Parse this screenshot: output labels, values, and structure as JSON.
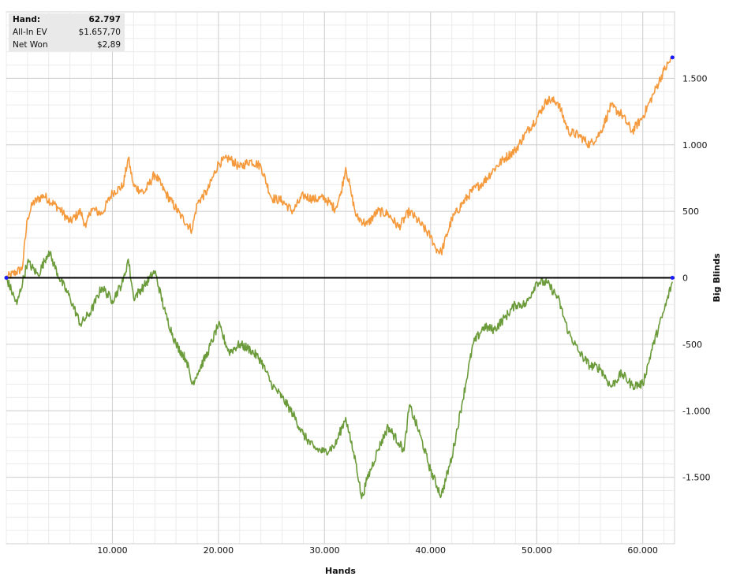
{
  "chart_data": {
    "type": "line",
    "xlabel": "Hands",
    "ylabel": "Big Blinds",
    "xlim": [
      0,
      63000
    ],
    "ylim": [
      -2000,
      2000
    ],
    "x_ticks": [
      10000,
      20000,
      30000,
      40000,
      50000,
      60000
    ],
    "x_tick_labels": [
      "10.000",
      "20.000",
      "30.000",
      "40.000",
      "50.000",
      "60.000"
    ],
    "y_ticks": [
      1500,
      1000,
      500,
      0,
      -500,
      -1000,
      -1500
    ],
    "y_tick_labels": [
      "1.500",
      "1.000",
      "500",
      "0",
      "-500",
      "-1.000",
      "-1.500"
    ],
    "grid": true,
    "series": [
      {
        "color": "#f59a3c",
        "points": [
          [
            0,
            0
          ],
          [
            1500,
            70
          ],
          [
            2000,
            450
          ],
          [
            2500,
            560
          ],
          [
            3500,
            620
          ],
          [
            5000,
            520
          ],
          [
            6000,
            420
          ],
          [
            7000,
            500
          ],
          [
            7500,
            380
          ],
          [
            8000,
            520
          ],
          [
            9000,
            480
          ],
          [
            10000,
            640
          ],
          [
            11000,
            690
          ],
          [
            11500,
            900
          ],
          [
            12000,
            690
          ],
          [
            13000,
            640
          ],
          [
            14000,
            780
          ],
          [
            15000,
            640
          ],
          [
            16500,
            460
          ],
          [
            17500,
            360
          ],
          [
            18000,
            560
          ],
          [
            19000,
            660
          ],
          [
            20000,
            860
          ],
          [
            21000,
            900
          ],
          [
            22000,
            830
          ],
          [
            23000,
            880
          ],
          [
            24000,
            840
          ],
          [
            25000,
            600
          ],
          [
            26000,
            580
          ],
          [
            27000,
            500
          ],
          [
            28000,
            620
          ],
          [
            29000,
            590
          ],
          [
            30000,
            600
          ],
          [
            31000,
            520
          ],
          [
            31500,
            620
          ],
          [
            32000,
            830
          ],
          [
            32500,
            640
          ],
          [
            33000,
            460
          ],
          [
            34000,
            400
          ],
          [
            35000,
            500
          ],
          [
            36000,
            480
          ],
          [
            37000,
            380
          ],
          [
            38000,
            500
          ],
          [
            39000,
            410
          ],
          [
            40000,
            310
          ],
          [
            40500,
            220
          ],
          [
            41000,
            190
          ],
          [
            42000,
            440
          ],
          [
            43000,
            560
          ],
          [
            44000,
            660
          ],
          [
            45000,
            720
          ],
          [
            46000,
            820
          ],
          [
            47000,
            900
          ],
          [
            48000,
            960
          ],
          [
            49000,
            1090
          ],
          [
            50000,
            1200
          ],
          [
            51000,
            1340
          ],
          [
            52000,
            1320
          ],
          [
            53000,
            1100
          ],
          [
            54000,
            1070
          ],
          [
            55000,
            1000
          ],
          [
            56000,
            1090
          ],
          [
            57000,
            1290
          ],
          [
            58000,
            1230
          ],
          [
            59000,
            1100
          ],
          [
            60000,
            1210
          ],
          [
            61000,
            1380
          ],
          [
            62000,
            1560
          ],
          [
            62797,
            1657
          ]
        ]
      },
      {
        "color": "#6b9b3a",
        "points": [
          [
            0,
            0
          ],
          [
            1000,
            -200
          ],
          [
            2000,
            120
          ],
          [
            3000,
            20
          ],
          [
            4000,
            200
          ],
          [
            5000,
            0
          ],
          [
            6000,
            -150
          ],
          [
            7000,
            -350
          ],
          [
            8000,
            -250
          ],
          [
            9000,
            -70
          ],
          [
            10000,
            -170
          ],
          [
            11000,
            -30
          ],
          [
            11500,
            140
          ],
          [
            12000,
            -150
          ],
          [
            13000,
            -60
          ],
          [
            14000,
            50
          ],
          [
            15000,
            -270
          ],
          [
            16000,
            -500
          ],
          [
            17000,
            -620
          ],
          [
            17500,
            -800
          ],
          [
            18000,
            -720
          ],
          [
            19000,
            -560
          ],
          [
            20000,
            -350
          ],
          [
            21000,
            -560
          ],
          [
            22000,
            -500
          ],
          [
            23000,
            -540
          ],
          [
            24000,
            -620
          ],
          [
            25000,
            -800
          ],
          [
            26000,
            -900
          ],
          [
            27000,
            -1020
          ],
          [
            28000,
            -1180
          ],
          [
            29000,
            -1280
          ],
          [
            30000,
            -1310
          ],
          [
            31000,
            -1260
          ],
          [
            32000,
            -1050
          ],
          [
            32500,
            -1240
          ],
          [
            33000,
            -1400
          ],
          [
            33500,
            -1660
          ],
          [
            34000,
            -1520
          ],
          [
            35000,
            -1300
          ],
          [
            36000,
            -1120
          ],
          [
            37000,
            -1240
          ],
          [
            37500,
            -1300
          ],
          [
            38000,
            -960
          ],
          [
            39000,
            -1180
          ],
          [
            40000,
            -1450
          ],
          [
            41000,
            -1640
          ],
          [
            42000,
            -1350
          ],
          [
            43000,
            -930
          ],
          [
            44000,
            -500
          ],
          [
            45000,
            -370
          ],
          [
            46000,
            -390
          ],
          [
            47000,
            -300
          ],
          [
            48000,
            -200
          ],
          [
            49000,
            -200
          ],
          [
            50000,
            -30
          ],
          [
            51000,
            -40
          ],
          [
            52000,
            -150
          ],
          [
            53000,
            -410
          ],
          [
            54000,
            -560
          ],
          [
            55000,
            -660
          ],
          [
            56000,
            -680
          ],
          [
            57000,
            -820
          ],
          [
            58000,
            -720
          ],
          [
            59000,
            -810
          ],
          [
            60000,
            -800
          ],
          [
            61000,
            -500
          ],
          [
            62000,
            -250
          ],
          [
            62797,
            -30
          ]
        ]
      }
    ],
    "zero_line": true
  },
  "info_panel": {
    "rows": [
      {
        "label": "Hand:",
        "value": "62.797"
      },
      {
        "label": "All-In EV",
        "value": "$1.657,70"
      },
      {
        "label": "Net Won",
        "value": "$2,89"
      }
    ]
  },
  "colors": {
    "background": "#ffffff",
    "grid_major": "#d0d0d0",
    "grid_minor": "#ebebeb",
    "zero_line": "#000000",
    "marker": "#1a1aff"
  }
}
